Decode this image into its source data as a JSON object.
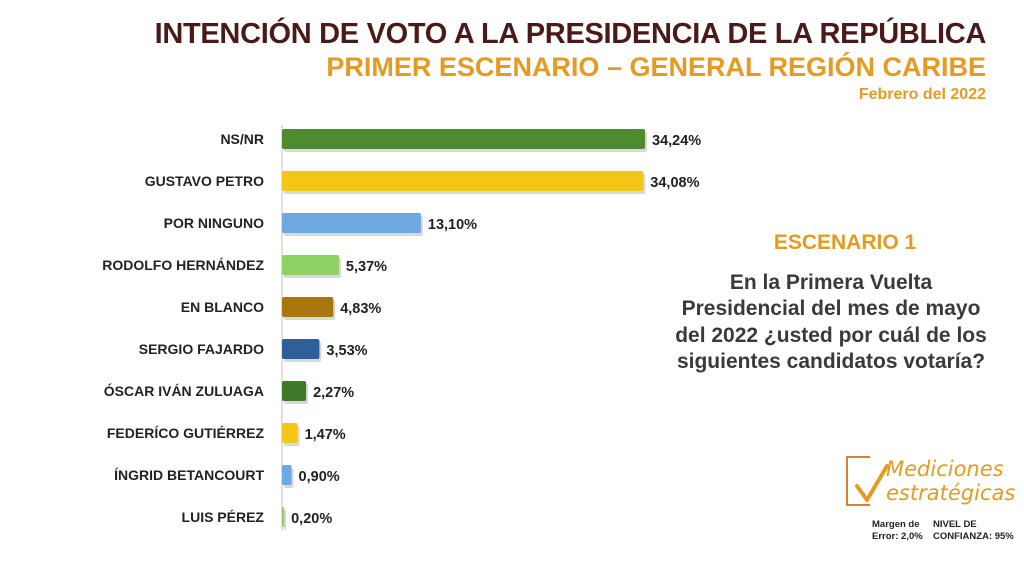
{
  "header": {
    "title": "INTENCIÓN DE VOTO A LA PRESIDENCIA DE LA REPÚBLICA",
    "subtitle": "PRIMER ESCENARIO – GENERAL REGIÓN CARIBE",
    "date": "Febrero del 2022"
  },
  "scenario": {
    "title": "ESCENARIO 1",
    "question": "En la Primera Vuelta Presidencial del mes de mayo del 2022 ¿usted por cuál de los siguientes candidatos votaría?"
  },
  "logo": {
    "line1": "Mediciones",
    "line2": "estratégicas"
  },
  "footer": {
    "margin_label": "Margen de",
    "margin_value": "Error: 2,0%",
    "confidence_label": "NIVEL DE",
    "confidence_value": "CONFIANZA: 95%"
  },
  "colors": {
    "dark_green": "#4e8a2e",
    "yellow": "#f5c518",
    "light_blue": "#6ea8e0",
    "light_green": "#8ed064",
    "brown": "#a7760f",
    "dark_blue": "#2f5f9a",
    "orange": "#e59a22"
  },
  "chart_data": {
    "type": "bar",
    "orientation": "horizontal",
    "categories": [
      "NS/NR",
      "GUSTAVO PETRO",
      "POR NINGUNO",
      "RODOLFO HERNÁNDEZ",
      "EN BLANCO",
      "SERGIO FAJARDO",
      "ÓSCAR IVÁN ZULUAGA",
      "FEDERÍCO GUTIÉRREZ",
      "ÍNGRID BETANCOURT",
      "LUIS PÉREZ"
    ],
    "values": [
      34.24,
      34.08,
      13.1,
      5.37,
      4.83,
      3.53,
      2.27,
      1.47,
      0.9,
      0.2
    ],
    "labels": [
      "34,24%",
      "34,08%",
      "13,10%",
      "5,37%",
      "4,83%",
      "3,53%",
      "2,27%",
      "1,47%",
      "0,90%",
      "0,20%"
    ],
    "bar_colors": [
      "#4e8a2e",
      "#f5c518",
      "#6ea8e0",
      "#8ed064",
      "#a7760f",
      "#2f5f9a",
      "#3f7a2a",
      "#f5c518",
      "#6ea8e0",
      "#8ed064"
    ],
    "xlim": [
      0,
      35
    ],
    "grid": false
  }
}
